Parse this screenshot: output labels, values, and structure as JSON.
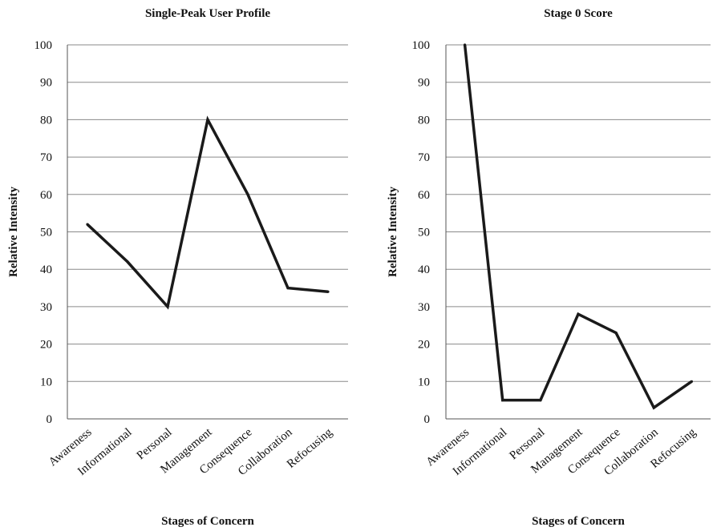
{
  "chart_data": [
    {
      "type": "line",
      "title": "Single-Peak User Profile",
      "xlabel": "Stages of Concern",
      "ylabel": "Relative Intensity",
      "ylim": [
        0,
        100
      ],
      "yticks": [
        0,
        10,
        20,
        30,
        40,
        50,
        60,
        70,
        80,
        90,
        100
      ],
      "grid": true,
      "categories": [
        "Awareness",
        "Informational",
        "Personal",
        "Management",
        "Consequence",
        "Collaboration",
        "Refocusing"
      ],
      "series": [
        {
          "values": [
            52,
            42,
            30,
            80,
            60,
            35,
            34
          ]
        }
      ]
    },
    {
      "type": "line",
      "title": "Stage 0 Score",
      "xlabel": "Stages of Concern",
      "ylabel": "Relative Intensity",
      "ylim": [
        0,
        100
      ],
      "yticks": [
        0,
        10,
        20,
        30,
        40,
        50,
        60,
        70,
        80,
        90,
        100
      ],
      "grid": true,
      "categories": [
        "Awareness",
        "Informational",
        "Personal",
        "Management",
        "Consequence",
        "Collaboration",
        "Refocusing"
      ],
      "series": [
        {
          "values": [
            100,
            5,
            5,
            28,
            23,
            3,
            10
          ]
        }
      ]
    }
  ]
}
